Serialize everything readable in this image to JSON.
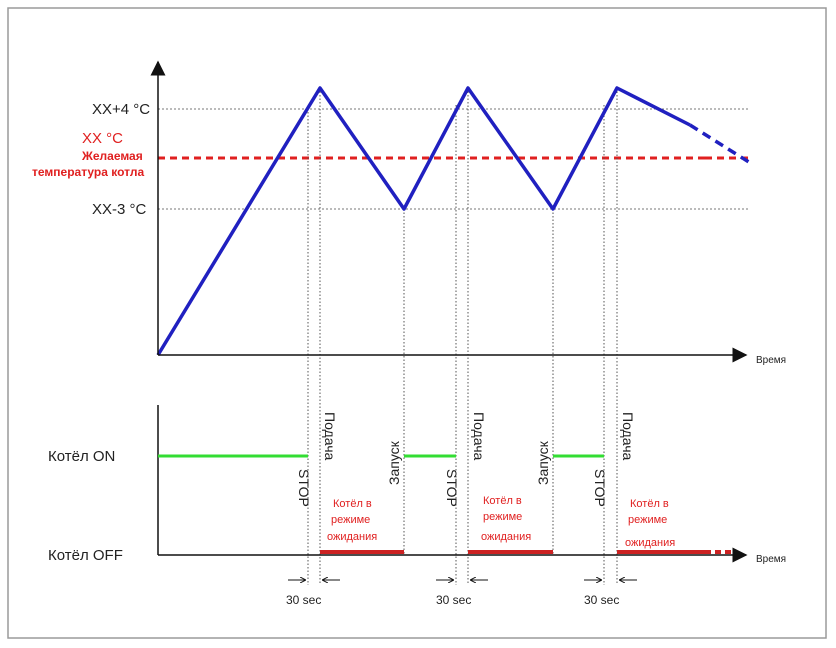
{
  "temperature_axis": {
    "max_label": "XX+4 °C",
    "setpoint_label": "XX °C",
    "setpoint_caption_1": "Желаемая",
    "setpoint_caption_2": "температура котла",
    "min_label": "XX-3 °C",
    "x_axis_label": "Время"
  },
  "boiler_axis": {
    "on_label": "Котёл ON",
    "off_label": "Котёл OFF",
    "x_axis_label": "Время"
  },
  "events": {
    "stop": "STOP",
    "feed": "Подача",
    "start": "Запуск"
  },
  "standby": {
    "line_1": "Котёл в",
    "line_2": "режиме",
    "line_3": "ожидания"
  },
  "delay_label": "30 sec",
  "colors": {
    "temperature_line": "#2020c0",
    "setpoint_line": "#e02020",
    "on_state": "#33dd33",
    "off_state": "#cc2222",
    "axis": "#111111",
    "guide": "#555555"
  }
}
